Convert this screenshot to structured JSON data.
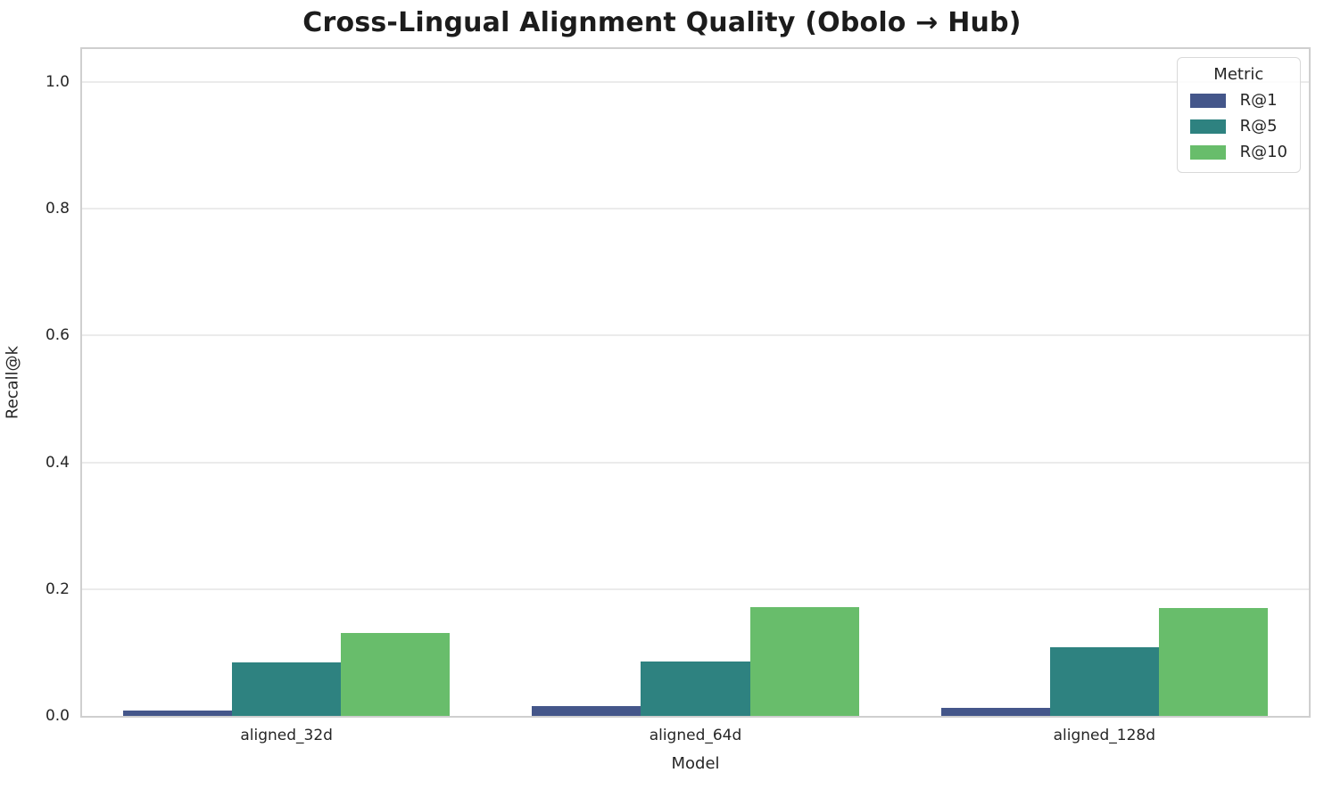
{
  "title": "Cross-Lingual Alignment Quality (Obolo → Hub)",
  "chart_data": {
    "type": "bar",
    "title": "Cross-Lingual Alignment Quality (Obolo → Hub)",
    "xlabel": "Model",
    "ylabel": "Recall@k",
    "categories": [
      "aligned_32d",
      "aligned_64d",
      "aligned_128d"
    ],
    "series": [
      {
        "name": "R@1",
        "color": "#44568a",
        "values": [
          0.008,
          0.016,
          0.012
        ]
      },
      {
        "name": "R@5",
        "color": "#2e8280",
        "values": [
          0.084,
          0.086,
          0.108
        ]
      },
      {
        "name": "R@10",
        "color": "#68bd6b",
        "values": [
          0.131,
          0.172,
          0.17
        ]
      }
    ],
    "ylim": [
      0,
      1.052
    ],
    "yticks": [
      0.0,
      0.2,
      0.4,
      0.6,
      0.8,
      1.0
    ],
    "ytick_labels": [
      "0.0",
      "0.2",
      "0.4",
      "0.6",
      "0.8",
      "1.0"
    ],
    "grid": true,
    "legend_title": "Metric",
    "legend_position": "upper right",
    "bar_group_width_fraction": 0.8
  }
}
